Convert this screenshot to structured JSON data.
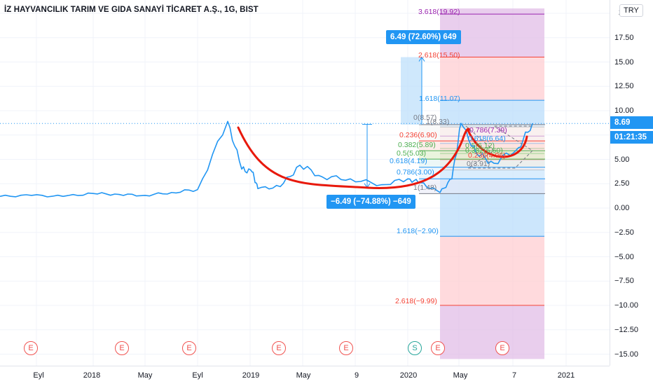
{
  "header": {
    "title": "İZ HAYVANCILIK TARIM VE GIDA SANAYİ TİCARET A.Ş., 1G, BIST"
  },
  "price_scale": {
    "currency": "TRY",
    "ticks": [
      "17.50",
      "15.00",
      "12.50",
      "10.00",
      "7.50",
      "5.00",
      "2.50",
      "0.00",
      "−2.50",
      "−5.00",
      "−7.50",
      "−10.00",
      "−12.50",
      "−15.00"
    ],
    "top_partial": "2",
    "last_price": "8.69",
    "countdown": "01:21:35"
  },
  "time_axis": {
    "labels": [
      "Eyl",
      "2018",
      "May",
      "Eyl",
      "2019",
      "May",
      "9",
      "2020",
      "May",
      "7",
      "2021"
    ]
  },
  "events": [
    "E",
    "E",
    "E",
    "E",
    "E",
    "S",
    "E",
    "E"
  ],
  "measurements": {
    "up": "6.49 (72.60%) 649",
    "down": "−6.49 (−74.88%) −649"
  },
  "fib_main": [
    "3.618(19.92)",
    "2.618(15.50)",
    "1.618(11.07)",
    "1(8.33)",
    "0.786(7.39)",
    "0.618(6.64)",
    "0.5(6.12)",
    "0.382(5.60)",
    "0.236(4.96)",
    "0(3.91)",
    "1.618(−2.90)",
    "2.618(−9.99)"
  ],
  "fib_small": [
    "0(8.57)",
    "0.236(6.90)",
    "0.382(5.89)",
    "0.5(5.03)",
    "0.618(4.19)",
    "0.786(3.00)",
    "1(1.48)"
  ],
  "colors": {
    "price_line": "#2196f3",
    "pattern": "#e8190c",
    "event": "#f05350",
    "split": "#26a69a",
    "accent": "#2196f3"
  },
  "chart_data": {
    "type": "line",
    "x": [
      "2017-07",
      "2017-09",
      "2017-11",
      "2018-01",
      "2018-03",
      "2018-05",
      "2018-07",
      "2018-09",
      "2018-10",
      "2018-11",
      "2018-12",
      "2019-01",
      "2019-03",
      "2019-05",
      "2019-07",
      "2019-09",
      "2019-11",
      "2020-01",
      "2020-02",
      "2020-03",
      "2020-04",
      "2020-05",
      "2020-06",
      "2020-07",
      "2020-08",
      "2020-09"
    ],
    "values": [
      1.2,
      1.3,
      1.2,
      1.5,
      1.4,
      1.3,
      1.6,
      1.9,
      8.9,
      4.0,
      3.7,
      2.0,
      2.2,
      4.4,
      3.2,
      3.0,
      2.4,
      3.0,
      2.6,
      1.6,
      3.0,
      8.7,
      5.6,
      4.6,
      6.2,
      8.7
    ],
    "ylim": [
      -15.5,
      20.5
    ]
  }
}
